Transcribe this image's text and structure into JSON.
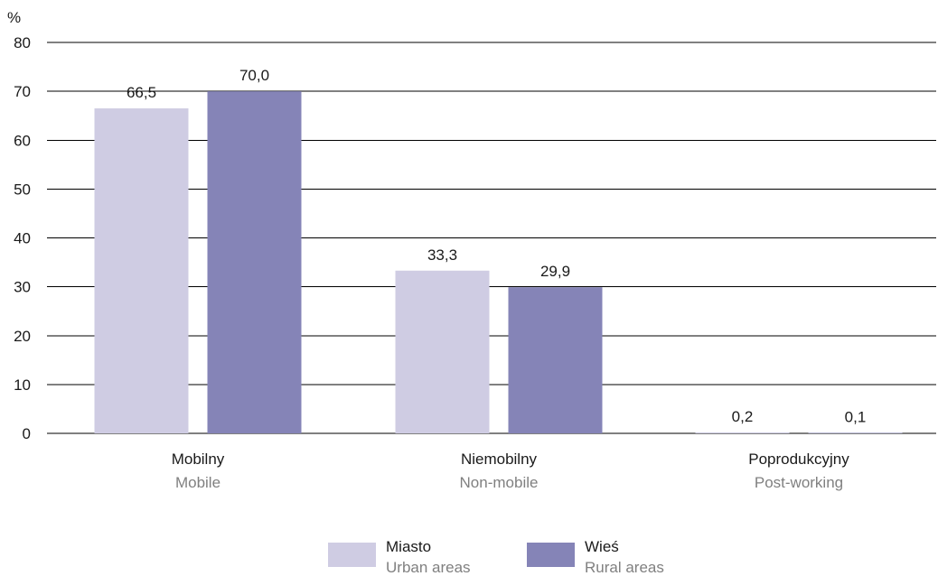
{
  "chart_data": {
    "type": "bar",
    "ylabel": "%",
    "ylim": [
      0,
      80
    ],
    "yticks": [
      0,
      10,
      20,
      30,
      40,
      50,
      60,
      70,
      80
    ],
    "grid": true,
    "legend_position": "bottom-center",
    "categories": [
      {
        "label": "Mobilny",
        "sublabel": "Mobile"
      },
      {
        "label": "Niemobilny",
        "sublabel": "Non-mobile"
      },
      {
        "label": "Poprodukcyjny",
        "sublabel": "Post-working"
      }
    ],
    "series": [
      {
        "name": "Miasto",
        "subname": "Urban areas",
        "color": "#cfcce3",
        "values": [
          66.5,
          33.3,
          0.2
        ],
        "value_labels": [
          "66,5",
          "33,3",
          "0,2"
        ]
      },
      {
        "name": "Wieś",
        "subname": "Rural areas",
        "color": "#8584b7",
        "values": [
          70.0,
          29.9,
          0.1
        ],
        "value_labels": [
          "70,0",
          "29,9",
          "0,1"
        ]
      }
    ]
  }
}
